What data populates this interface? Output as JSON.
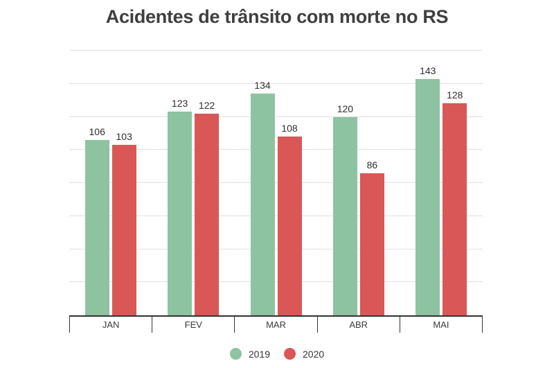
{
  "title": "Acidentes de trânsito com morte no RS",
  "colors": {
    "series_2019": "#8ec3a1",
    "series_2020": "#d95757",
    "grid": "#e0e0e0",
    "axis": "#323232",
    "title_text": "#3f3f3f",
    "value_label_text": "#2e2e2e"
  },
  "legend": [
    {
      "label": "2019",
      "color": "#8ec3a1"
    },
    {
      "label": "2020",
      "color": "#d95757"
    }
  ],
  "chart_data": {
    "type": "bar",
    "title": "Acidentes de trânsito com morte no RS",
    "categories": [
      "JAN",
      "FEV",
      "MAR",
      "ABR",
      "MAI"
    ],
    "series": [
      {
        "name": "2019",
        "color": "#8ec3a1",
        "values": [
          106,
          123,
          134,
          120,
          143
        ]
      },
      {
        "name": "2020",
        "color": "#d95757",
        "values": [
          103,
          122,
          108,
          86,
          128
        ]
      }
    ],
    "xlabel": "",
    "ylabel": "",
    "ylim": [
      0,
      160
    ],
    "grid_step": 20,
    "grid": true,
    "y_tick_labels_visible": false,
    "value_labels": true,
    "legend_position": "bottom"
  }
}
